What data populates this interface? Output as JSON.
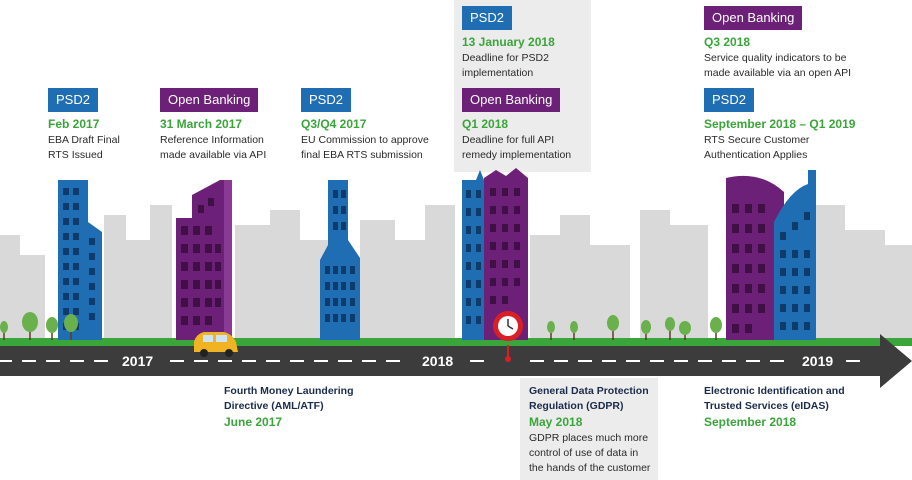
{
  "colors": {
    "psd2": "#1f6eb4",
    "open_banking": "#6d2077",
    "date_green": "#3aa53a",
    "road": "#3c3c3c",
    "grass": "#3aa53a"
  },
  "milestones": [
    {
      "badge": "PSD2",
      "date": "Feb 2017",
      "desc": [
        "EBA Draft Final",
        "RTS Issued"
      ]
    },
    {
      "badge": "Open Banking",
      "date": "31 March 2017",
      "desc": [
        "Reference Information",
        "made available via API"
      ]
    },
    {
      "badge": "PSD2",
      "date": "Q3/Q4 2017",
      "desc": [
        "EU Commission to approve",
        "final EBA RTS submission"
      ]
    },
    {
      "badge": "PSD2",
      "date": "13 January 2018",
      "desc": [
        "Deadline for PSD2",
        "implementation"
      ]
    },
    {
      "badge": "Open Banking",
      "date": "Q1 2018",
      "desc": [
        "Deadline for full API",
        "remedy implementation"
      ]
    },
    {
      "badge": "Open Banking",
      "date": "Q3 2018",
      "desc": [
        "Service quality indicators to be",
        "made available via an open API"
      ]
    },
    {
      "badge": "PSD2",
      "date": "September 2018 – Q1 2019",
      "desc": [
        "RTS Secure Customer",
        "Authentication Applies"
      ]
    }
  ],
  "timeline": {
    "years": [
      "2017",
      "2018",
      "2019"
    ]
  },
  "bottom_events": [
    {
      "title": [
        "Fourth Money Laundering",
        "Directive (AML/ATF)"
      ],
      "date": "June 2017",
      "desc": []
    },
    {
      "title": [
        "General Data Protection",
        "Regulation (GDPR)"
      ],
      "date": "May 2018",
      "desc": [
        "GDPR places much more",
        "control of use of data in",
        "the hands of the customer"
      ]
    },
    {
      "title": [
        "Electronic Identification and",
        "Trusted Services (eIDAS)"
      ],
      "date": "September 2018",
      "desc": []
    }
  ],
  "icons": {
    "car": "car-icon",
    "clock": "clock-pin-icon",
    "tree": "tree-icon"
  }
}
